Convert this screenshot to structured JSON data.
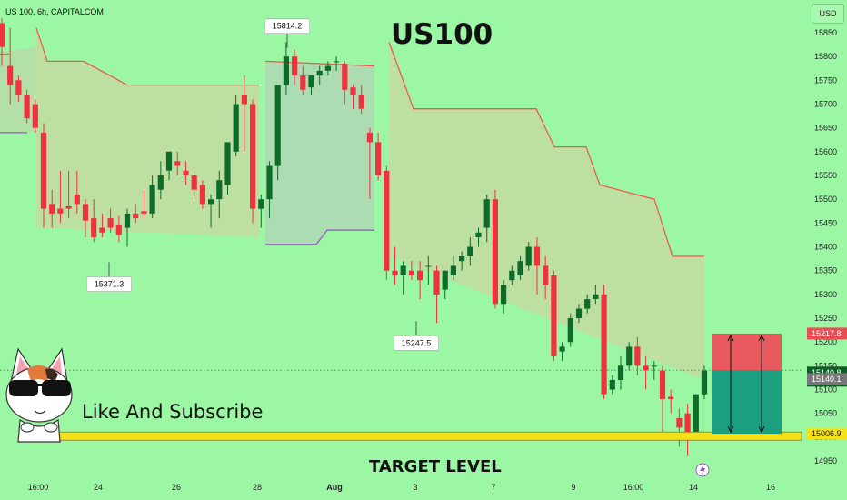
{
  "header": {
    "symbol_line": "US 100, 6h, CAPITALCOM",
    "currency_button": "USD"
  },
  "annotations": {
    "title": "US100",
    "subscribe": "Like And Subscribe",
    "target_label": "TARGET LEVEL"
  },
  "colors": {
    "background": "#9bf7a4",
    "bull": "#0f6b2a",
    "bear": "#f0323f",
    "stop_line": "#f05a4a",
    "trail_low": "#9b59d0",
    "target_bar": "#f5e11a",
    "stop_box": "#e85a5e",
    "target_box": "#1aa080"
  },
  "chart_data": {
    "type": "candlestick",
    "symbol": "US 100",
    "timeframe": "6h",
    "source": "CAPITALCOM",
    "currency": "USD",
    "y_axis": {
      "ticks": [
        15850,
        15800,
        15750,
        15700,
        15650,
        15600,
        15550,
        15500,
        15450,
        15400,
        15350,
        15300,
        15250,
        15200,
        15150,
        15100,
        15050,
        15000,
        14950
      ]
    },
    "x_axis": {
      "ticks": [
        "16:00",
        "24",
        "26",
        "28",
        "Aug",
        "3",
        "7",
        "9",
        "16:00",
        "14",
        "16"
      ]
    },
    "price_labels": [
      {
        "value": 15217.8,
        "label": "15217.8",
        "color": "#e84c55"
      },
      {
        "value": 15140.8,
        "label": "15140.8",
        "sub": "32:16",
        "color": "#0e5d24"
      },
      {
        "value": 15140.1,
        "label": "15140.1",
        "color": "#777777"
      },
      {
        "value": 15006.9,
        "label": "15006.9",
        "color": "#f5e11a"
      }
    ],
    "callouts": [
      {
        "label": "15814.2",
        "value": 15814.2,
        "direction": "high"
      },
      {
        "label": "15371.3",
        "value": 15371.3,
        "direction": "low"
      },
      {
        "label": "15247.5",
        "value": 15247.5,
        "direction": "low"
      }
    ],
    "candles": [
      [
        15870,
        15880,
        15820,
        15780
      ],
      [
        15780,
        15860,
        15740,
        15700
      ],
      [
        15750,
        15760,
        15720,
        15705
      ],
      [
        15720,
        15730,
        15670,
        15660
      ],
      [
        15700,
        15710,
        15650,
        15640
      ],
      [
        15640,
        15660,
        15480,
        15440
      ],
      [
        15490,
        15520,
        15470,
        15440
      ],
      [
        15480,
        15560,
        15470,
        15450
      ],
      [
        15485,
        15560,
        15480,
        15460
      ],
      [
        15510,
        15560,
        15490,
        15470
      ],
      [
        15490,
        15500,
        15455,
        15420
      ],
      [
        15460,
        15500,
        15420,
        15410
      ],
      [
        15440,
        15470,
        15430,
        15420
      ],
      [
        15460,
        15480,
        15440,
        15430
      ],
      [
        15445,
        15465,
        15425,
        15410
      ],
      [
        15440,
        15480,
        15470,
        15400
      ],
      [
        15470,
        15490,
        15460,
        15450
      ],
      [
        15475,
        15520,
        15470,
        15460
      ],
      [
        15470,
        15550,
        15530,
        15460
      ],
      [
        15520,
        15580,
        15550,
        15500
      ],
      [
        15560,
        15590,
        15600,
        15540
      ],
      [
        15580,
        15600,
        15570,
        15550
      ],
      [
        15560,
        15580,
        15550,
        15530
      ],
      [
        15550,
        15560,
        15520,
        15500
      ],
      [
        15530,
        15540,
        15490,
        15480
      ],
      [
        15490,
        15510,
        15500,
        15440
      ],
      [
        15500,
        15560,
        15540,
        15460
      ],
      [
        15530,
        15620,
        15620,
        15510
      ],
      [
        15600,
        15720,
        15700,
        15590
      ],
      [
        15720,
        15760,
        15700,
        15600
      ],
      [
        15700,
        15710,
        15480,
        15450
      ],
      [
        15480,
        15510,
        15500,
        15440
      ],
      [
        15500,
        15580,
        15570,
        15460
      ],
      [
        15570,
        15740,
        15740,
        15540
      ],
      [
        15740,
        15830,
        15800,
        15720
      ],
      [
        15800,
        15815,
        15760,
        15740
      ],
      [
        15760,
        15780,
        15730,
        15720
      ],
      [
        15735,
        15760,
        15760,
        15720
      ],
      [
        15760,
        15780,
        15770,
        15740
      ],
      [
        15770,
        15790,
        15780,
        15760
      ],
      [
        15790,
        15800,
        15790,
        15770
      ],
      [
        15785,
        15790,
        15730,
        15700
      ],
      [
        15735,
        15740,
        15720,
        15690
      ],
      [
        15720,
        15740,
        15690,
        15680
      ],
      [
        15640,
        15650,
        15620,
        15500
      ],
      [
        15620,
        15640,
        15550,
        15540
      ],
      [
        15560,
        15570,
        15350,
        15330
      ],
      [
        15350,
        15400,
        15340,
        15320
      ],
      [
        15340,
        15370,
        15360,
        15300
      ],
      [
        15350,
        15370,
        15340,
        15330
      ],
      [
        15350,
        15370,
        15330,
        15290
      ],
      [
        15360,
        15380,
        15360,
        15320
      ],
      [
        15350,
        15360,
        15300,
        15240
      ],
      [
        15310,
        15350,
        15350,
        15290
      ],
      [
        15340,
        15380,
        15360,
        15330
      ],
      [
        15370,
        15390,
        15380,
        15350
      ],
      [
        15380,
        15420,
        15400,
        15360
      ],
      [
        15420,
        15440,
        15430,
        15400
      ],
      [
        15440,
        15510,
        15500,
        15410
      ],
      [
        15500,
        15520,
        15280,
        15270
      ],
      [
        15280,
        15330,
        15320,
        15260
      ],
      [
        15330,
        15360,
        15350,
        15320
      ],
      [
        15340,
        15380,
        15370,
        15330
      ],
      [
        15360,
        15410,
        15400,
        15350
      ],
      [
        15400,
        15420,
        15360,
        15300
      ],
      [
        15360,
        15380,
        15320,
        15290
      ],
      [
        15340,
        15350,
        15170,
        15160
      ],
      [
        15180,
        15200,
        15190,
        15160
      ],
      [
        15200,
        15260,
        15250,
        15190
      ],
      [
        15250,
        15280,
        15270,
        15240
      ],
      [
        15270,
        15300,
        15290,
        15260
      ],
      [
        15290,
        15320,
        15300,
        15280
      ],
      [
        15300,
        15320,
        15090,
        15080
      ],
      [
        15100,
        15130,
        15120,
        15090
      ],
      [
        15120,
        15170,
        15150,
        15100
      ],
      [
        15150,
        15200,
        15190,
        15140
      ],
      [
        15190,
        15210,
        15150,
        15130
      ],
      [
        15150,
        15170,
        15140,
        15100
      ],
      [
        15150,
        15160,
        15150,
        15120
      ],
      [
        15140,
        15150,
        15080,
        15000
      ],
      [
        15085,
        15100,
        15080,
        15050
      ],
      [
        15040,
        15060,
        15020,
        14980
      ],
      [
        15050,
        15070,
        15010,
        14960
      ],
      [
        15010,
        15090,
        15090,
        15000
      ],
      [
        15090,
        15150,
        15140,
        15080
      ]
    ],
    "trailing_stop": {
      "color": "#f05a4a"
    },
    "target_level": {
      "value": 15006.9
    },
    "position": {
      "stop": 15217.8,
      "entry": 15140.8,
      "target": 15006.9
    }
  }
}
